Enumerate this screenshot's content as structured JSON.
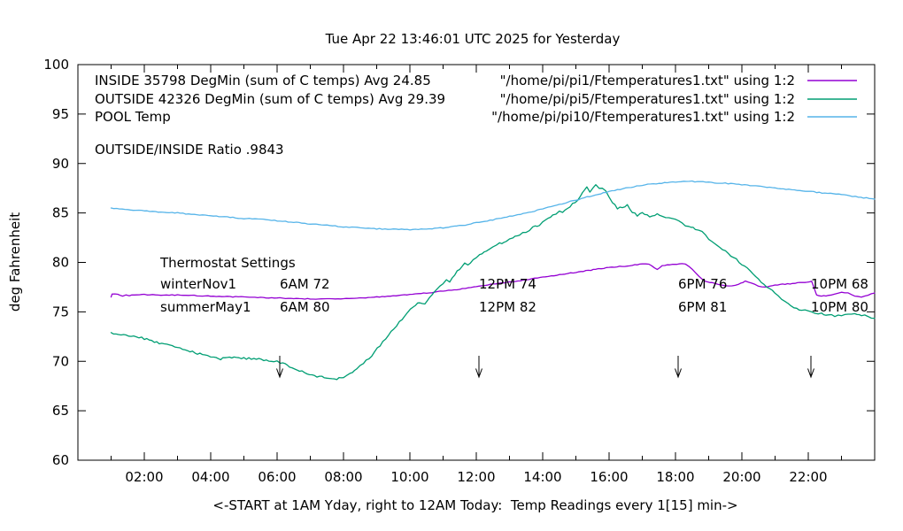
{
  "title": "Tue Apr 22 13:46:01 UTC 2025 for Yesterday",
  "xlabel": "<-START at 1AM Yday, right to 12AM Today:  Temp Readings every 1[15] min->",
  "ylabel": "deg Fahrenheit",
  "legend": {
    "rows": [
      {
        "label": "INSIDE 35798 DegMin (sum of C temps) Avg 24.85",
        "file": "\"/home/pi/pi1/Ftemperatures1.txt\" using 1:2",
        "color": "#9400d3"
      },
      {
        "label": "OUTSIDE 42326 DegMin (sum of C temps) Avg 29.39",
        "file": "\"/home/pi/pi5/Ftemperatures1.txt\" using 1:2",
        "color": "#009e73"
      },
      {
        "label": "POOL Temp",
        "file": "\"/home/pi/pi10/Ftemperatures1.txt\" using 1:2",
        "color": "#56b4e9"
      }
    ],
    "ratio_note": "OUTSIDE/INSIDE Ratio .9843"
  },
  "thermostat": {
    "heading": "Thermostat Settings",
    "columns_hours": [
      6,
      12,
      18,
      22
    ],
    "rows": [
      {
        "label": "winterNov1",
        "entries": [
          "6AM 72",
          "12PM 74",
          "6PM 76",
          "10PM 68"
        ]
      },
      {
        "label": "summerMay1",
        "entries": [
          "6AM 80",
          "12PM 82",
          "6PM 81",
          "10PM 80"
        ]
      }
    ]
  },
  "chart_data": {
    "type": "line",
    "title": "Tue Apr 22 13:46:01 UTC 2025 for Yesterday",
    "xlabel": "<-START at 1AM Yday, right to 12AM Today:  Temp Readings every 1[15] min->",
    "ylabel": "deg Fahrenheit",
    "x_axis": {
      "range": [
        0,
        24
      ],
      "major_tick_hours": [
        2,
        4,
        6,
        8,
        10,
        12,
        14,
        16,
        18,
        20,
        22
      ],
      "tick_labels": [
        "02:00",
        "04:00",
        "06:00",
        "08:00",
        "10:00",
        "12:00",
        "14:00",
        "16:00",
        "18:00",
        "20:00",
        "22:00"
      ],
      "minor_tick_hours": [
        1,
        3,
        5,
        7,
        9,
        11,
        13,
        15,
        17,
        19,
        21,
        23
      ]
    },
    "y_axis": {
      "range": [
        60,
        100
      ],
      "ticks": [
        60,
        65,
        70,
        75,
        80,
        85,
        90,
        95,
        100
      ]
    },
    "legend_position": "top-inside",
    "grid": false,
    "arrows_at_hours": [
      6,
      12,
      18,
      22
    ],
    "series": [
      {
        "name": "INSIDE",
        "color": "#9400d3",
        "noise": 0.04,
        "points": [
          [
            1,
            76.5
          ],
          [
            1.03,
            76.8
          ],
          [
            1.2,
            76.75
          ],
          [
            1.35,
            76.6
          ],
          [
            1.45,
            76.75
          ],
          [
            1.55,
            76.6
          ],
          [
            1.7,
            76.75
          ],
          [
            2,
            76.75
          ],
          [
            2.5,
            76.7
          ],
          [
            3,
            76.7
          ],
          [
            3.5,
            76.65
          ],
          [
            4,
            76.6
          ],
          [
            4.5,
            76.55
          ],
          [
            5,
            76.5
          ],
          [
            5.5,
            76.45
          ],
          [
            6,
            76.4
          ],
          [
            6.5,
            76.35
          ],
          [
            7,
            76.3
          ],
          [
            7.5,
            76.3
          ],
          [
            8,
            76.35
          ],
          [
            8.5,
            76.4
          ],
          [
            9,
            76.5
          ],
          [
            9.5,
            76.6
          ],
          [
            10,
            76.75
          ],
          [
            10.5,
            76.9
          ],
          [
            11,
            77.1
          ],
          [
            11.5,
            77.3
          ],
          [
            12,
            77.55
          ],
          [
            12.5,
            77.8
          ],
          [
            13,
            78.0
          ],
          [
            13.5,
            78.25
          ],
          [
            14,
            78.5
          ],
          [
            14.5,
            78.75
          ],
          [
            15,
            79.0
          ],
          [
            15.3,
            79.15
          ],
          [
            15.6,
            79.3
          ],
          [
            16,
            79.5
          ],
          [
            16.4,
            79.6
          ],
          [
            16.7,
            79.7
          ],
          [
            17,
            79.85
          ],
          [
            17.2,
            79.8
          ],
          [
            17.45,
            79.3
          ],
          [
            17.6,
            79.7
          ],
          [
            17.9,
            79.8
          ],
          [
            18.1,
            79.85
          ],
          [
            18.3,
            79.85
          ],
          [
            18.5,
            79.3
          ],
          [
            18.7,
            78.6
          ],
          [
            18.9,
            78.1
          ],
          [
            19.1,
            77.95
          ],
          [
            19.3,
            77.8
          ],
          [
            19.5,
            77.65
          ],
          [
            19.7,
            77.6
          ],
          [
            19.9,
            77.8
          ],
          [
            20.1,
            78.1
          ],
          [
            20.3,
            77.9
          ],
          [
            20.5,
            77.6
          ],
          [
            20.7,
            77.5
          ],
          [
            21,
            77.7
          ],
          [
            21.3,
            77.8
          ],
          [
            21.6,
            77.9
          ],
          [
            21.9,
            78.0
          ],
          [
            22.1,
            78.1
          ],
          [
            22.25,
            76.7
          ],
          [
            22.4,
            76.6
          ],
          [
            22.6,
            76.65
          ],
          [
            22.8,
            76.8
          ],
          [
            23,
            77.0
          ],
          [
            23.2,
            76.9
          ],
          [
            23.4,
            76.6
          ],
          [
            23.6,
            76.5
          ],
          [
            23.8,
            76.7
          ],
          [
            24,
            76.9
          ]
        ]
      },
      {
        "name": "OUTSIDE",
        "color": "#009e73",
        "noise": 0.1,
        "points": [
          [
            1,
            72.9
          ],
          [
            1.3,
            72.75
          ],
          [
            1.6,
            72.55
          ],
          [
            2,
            72.3
          ],
          [
            2.3,
            72.0
          ],
          [
            2.6,
            71.7
          ],
          [
            3,
            71.4
          ],
          [
            3.3,
            71.1
          ],
          [
            3.6,
            70.8
          ],
          [
            3.9,
            70.55
          ],
          [
            4.1,
            70.35
          ],
          [
            4.3,
            70.25
          ],
          [
            4.5,
            70.45
          ],
          [
            4.7,
            70.35
          ],
          [
            5,
            70.3
          ],
          [
            5.3,
            70.25
          ],
          [
            5.6,
            70.15
          ],
          [
            5.9,
            70.05
          ],
          [
            6.1,
            69.85
          ],
          [
            6.3,
            69.6
          ],
          [
            6.6,
            69.15
          ],
          [
            6.9,
            68.75
          ],
          [
            7.2,
            68.5
          ],
          [
            7.5,
            68.3
          ],
          [
            7.8,
            68.25
          ],
          [
            8,
            68.35
          ],
          [
            8.2,
            68.7
          ],
          [
            8.4,
            69.2
          ],
          [
            8.6,
            69.8
          ],
          [
            8.85,
            70.6
          ],
          [
            9.1,
            71.6
          ],
          [
            9.35,
            72.6
          ],
          [
            9.6,
            73.6
          ],
          [
            9.85,
            74.6
          ],
          [
            10.1,
            75.5
          ],
          [
            10.3,
            76.0
          ],
          [
            10.45,
            75.8
          ],
          [
            10.6,
            76.4
          ],
          [
            10.8,
            77.2
          ],
          [
            11,
            77.9
          ],
          [
            11.1,
            78.3
          ],
          [
            11.2,
            78.1
          ],
          [
            11.35,
            78.8
          ],
          [
            11.5,
            79.3
          ],
          [
            11.65,
            79.9
          ],
          [
            11.75,
            79.7
          ],
          [
            11.9,
            80.2
          ],
          [
            12.1,
            80.7
          ],
          [
            12.3,
            81.2
          ],
          [
            12.5,
            81.6
          ],
          [
            12.7,
            81.9
          ],
          [
            12.9,
            82.1
          ],
          [
            13.1,
            82.5
          ],
          [
            13.3,
            82.8
          ],
          [
            13.5,
            83.1
          ],
          [
            13.7,
            83.5
          ],
          [
            13.9,
            83.8
          ],
          [
            14.1,
            84.3
          ],
          [
            14.3,
            84.7
          ],
          [
            14.5,
            85.1
          ],
          [
            14.6,
            85.0
          ],
          [
            14.75,
            85.5
          ],
          [
            14.9,
            85.9
          ],
          [
            15.05,
            86.3
          ],
          [
            15.2,
            87.0
          ],
          [
            15.33,
            87.7
          ],
          [
            15.42,
            87.1
          ],
          [
            15.52,
            87.5
          ],
          [
            15.6,
            87.8
          ],
          [
            15.7,
            87.4
          ],
          [
            15.8,
            87.6
          ],
          [
            15.9,
            87.2
          ],
          [
            16,
            86.7
          ],
          [
            16.1,
            86.1
          ],
          [
            16.25,
            85.4
          ],
          [
            16.4,
            85.6
          ],
          [
            16.55,
            85.8
          ],
          [
            16.7,
            85.1
          ],
          [
            16.85,
            84.7
          ],
          [
            17,
            85.0
          ],
          [
            17.15,
            84.8
          ],
          [
            17.3,
            84.6
          ],
          [
            17.45,
            84.9
          ],
          [
            17.6,
            84.7
          ],
          [
            17.8,
            84.5
          ],
          [
            18,
            84.3
          ],
          [
            18.2,
            83.9
          ],
          [
            18.4,
            83.6
          ],
          [
            18.6,
            83.4
          ],
          [
            18.8,
            83.1
          ],
          [
            19,
            82.4
          ],
          [
            19.25,
            81.8
          ],
          [
            19.5,
            81.1
          ],
          [
            19.75,
            80.5
          ],
          [
            20,
            79.8
          ],
          [
            20.25,
            79.1
          ],
          [
            20.5,
            78.3
          ],
          [
            20.75,
            77.6
          ],
          [
            21,
            76.9
          ],
          [
            21.2,
            76.3
          ],
          [
            21.4,
            75.8
          ],
          [
            21.65,
            75.3
          ],
          [
            21.8,
            75.2
          ],
          [
            22,
            75.1
          ],
          [
            22.2,
            74.95
          ],
          [
            22.4,
            74.8
          ],
          [
            22.6,
            74.65
          ],
          [
            22.8,
            74.6
          ],
          [
            23,
            74.55
          ],
          [
            23.2,
            74.8
          ],
          [
            23.4,
            74.85
          ],
          [
            23.6,
            74.7
          ],
          [
            23.8,
            74.55
          ],
          [
            24,
            74.35
          ]
        ]
      },
      {
        "name": "POOL",
        "color": "#56b4e9",
        "noise": 0.05,
        "points": [
          [
            1,
            85.5
          ],
          [
            1.5,
            85.35
          ],
          [
            2,
            85.2
          ],
          [
            2.5,
            85.1
          ],
          [
            3,
            85.0
          ],
          [
            3.5,
            84.85
          ],
          [
            4,
            84.7
          ],
          [
            4.5,
            84.6
          ],
          [
            5,
            84.45
          ],
          [
            5.5,
            84.35
          ],
          [
            6,
            84.2
          ],
          [
            6.5,
            84.05
          ],
          [
            7,
            83.9
          ],
          [
            7.5,
            83.75
          ],
          [
            8,
            83.6
          ],
          [
            8.5,
            83.5
          ],
          [
            9,
            83.4
          ],
          [
            9.5,
            83.35
          ],
          [
            10,
            83.3
          ],
          [
            10.5,
            83.35
          ],
          [
            11,
            83.5
          ],
          [
            11.5,
            83.7
          ],
          [
            12,
            84.0
          ],
          [
            12.5,
            84.3
          ],
          [
            13,
            84.65
          ],
          [
            13.5,
            85.0
          ],
          [
            14,
            85.4
          ],
          [
            14.5,
            85.85
          ],
          [
            15,
            86.3
          ],
          [
            15.5,
            86.75
          ],
          [
            16,
            87.15
          ],
          [
            16.5,
            87.5
          ],
          [
            17,
            87.8
          ],
          [
            17.5,
            88.0
          ],
          [
            18,
            88.15
          ],
          [
            18.5,
            88.2
          ],
          [
            19,
            88.1
          ],
          [
            19.5,
            88.0
          ],
          [
            20,
            87.85
          ],
          [
            20.5,
            87.7
          ],
          [
            21,
            87.5
          ],
          [
            21.5,
            87.35
          ],
          [
            22,
            87.2
          ],
          [
            22.5,
            87.0
          ],
          [
            23,
            86.85
          ],
          [
            23.5,
            86.6
          ],
          [
            24,
            86.4
          ]
        ]
      }
    ]
  }
}
